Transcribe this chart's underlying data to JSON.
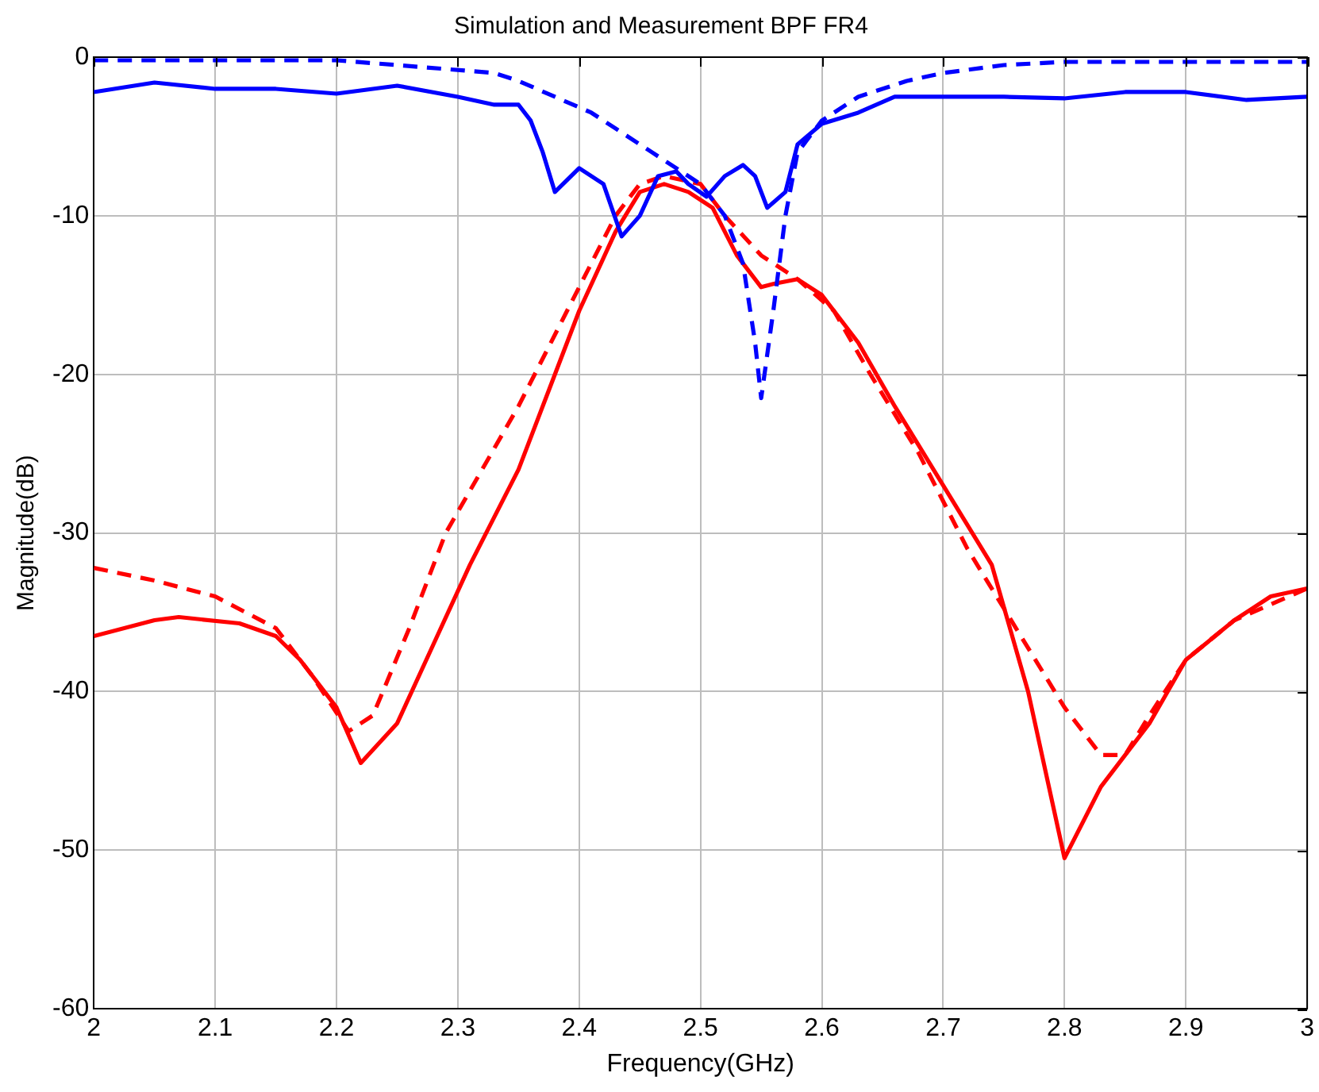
{
  "chart_data": {
    "type": "line",
    "title": "Simulation and Measurement BPF FR4",
    "xlabel": "Frequency(GHz)",
    "ylabel": "Magnitude(dB)",
    "xlim": [
      2,
      3
    ],
    "xticks": [
      2,
      2.1,
      2.2,
      2.3,
      2.4,
      2.5,
      2.6,
      2.7,
      2.8,
      2.9,
      3
    ],
    "ylim": [
      -60,
      0
    ],
    "yticks": [
      -60,
      -50,
      -40,
      -30,
      -20,
      -10,
      0
    ],
    "grid": true,
    "legend": false,
    "marker": "none",
    "series": [
      {
        "color": "#0000ff",
        "line_style": "solid",
        "x": [
          2,
          2.05,
          2.1,
          2.15,
          2.2,
          2.25,
          2.3,
          2.33,
          2.35,
          2.36,
          2.37,
          2.38,
          2.4,
          2.42,
          2.435,
          2.45,
          2.465,
          2.48,
          2.49,
          2.505,
          2.52,
          2.535,
          2.545,
          2.555,
          2.57,
          2.58,
          2.6,
          2.63,
          2.66,
          2.75,
          2.8,
          2.85,
          2.9,
          2.95,
          3
        ],
        "values": [
          -2.2,
          -1.6,
          -2,
          -2,
          -2.3,
          -1.8,
          -2.5,
          -3,
          -3,
          -4,
          -6,
          -8.5,
          -7,
          -8,
          -11.3,
          -10,
          -7.5,
          -7.2,
          -8,
          -8.8,
          -7.5,
          -6.8,
          -7.5,
          -9.5,
          -8.5,
          -5.5,
          -4.2,
          -3.5,
          -2.5,
          -2.5,
          -2.6,
          -2.2,
          -2.2,
          -2.7,
          -2.5
        ]
      },
      {
        "color": "#0000ff",
        "line_style": "dashed",
        "x": [
          2,
          2.1,
          2.2,
          2.25,
          2.33,
          2.35,
          2.38,
          2.41,
          2.43,
          2.46,
          2.48,
          2.5,
          2.52,
          2.535,
          2.545,
          2.55,
          2.56,
          2.57,
          2.58,
          2.6,
          2.63,
          2.67,
          2.7,
          2.75,
          2.8,
          3
        ],
        "values": [
          -0.2,
          -0.2,
          -0.2,
          -0.5,
          -1,
          -1.5,
          -2.5,
          -3.5,
          -4.5,
          -6,
          -7,
          -8,
          -10,
          -13,
          -18,
          -21.5,
          -16,
          -10,
          -6,
          -4,
          -2.5,
          -1.5,
          -1,
          -0.5,
          -0.3,
          -0.3
        ]
      },
      {
        "color": "#ff0000",
        "line_style": "solid",
        "x": [
          2,
          2.05,
          2.07,
          2.12,
          2.15,
          2.17,
          2.2,
          2.22,
          2.25,
          2.28,
          2.31,
          2.35,
          2.38,
          2.4,
          2.43,
          2.45,
          2.47,
          2.49,
          2.51,
          2.53,
          2.55,
          2.56,
          2.58,
          2.6,
          2.63,
          2.66,
          2.7,
          2.74,
          2.77,
          2.8,
          2.83,
          2.87,
          2.9,
          2.94,
          2.97,
          3
        ],
        "values": [
          -36.5,
          -35.5,
          -35.3,
          -35.7,
          -36.5,
          -38,
          -41,
          -44.5,
          -42,
          -37,
          -32,
          -26,
          -20,
          -16,
          -11,
          -8.5,
          -8,
          -8.5,
          -9.5,
          -12.5,
          -14.5,
          -14.3,
          -14,
          -15,
          -18,
          -22,
          -27,
          -32,
          -40,
          -50.5,
          -46,
          -42,
          -38,
          -35.5,
          -34,
          -33.5
        ]
      },
      {
        "color": "#ff0000",
        "line_style": "dashed",
        "x": [
          2,
          2.05,
          2.1,
          2.15,
          2.18,
          2.21,
          2.23,
          2.26,
          2.29,
          2.32,
          2.35,
          2.39,
          2.43,
          2.45,
          2.47,
          2.5,
          2.52,
          2.55,
          2.58,
          2.61,
          2.64,
          2.68,
          2.72,
          2.76,
          2.8,
          2.83,
          2.85,
          2.87,
          2.9,
          2.94,
          3
        ],
        "values": [
          -32.2,
          -33,
          -34,
          -36,
          -39,
          -42.5,
          -41.5,
          -36,
          -30,
          -26,
          -22,
          -16,
          -10,
          -8,
          -7.5,
          -8,
          -10,
          -12.5,
          -14,
          -16,
          -20,
          -25,
          -31,
          -36,
          -41,
          -44,
          -44,
          -41.5,
          -38,
          -35.5,
          -33.5
        ]
      }
    ]
  }
}
